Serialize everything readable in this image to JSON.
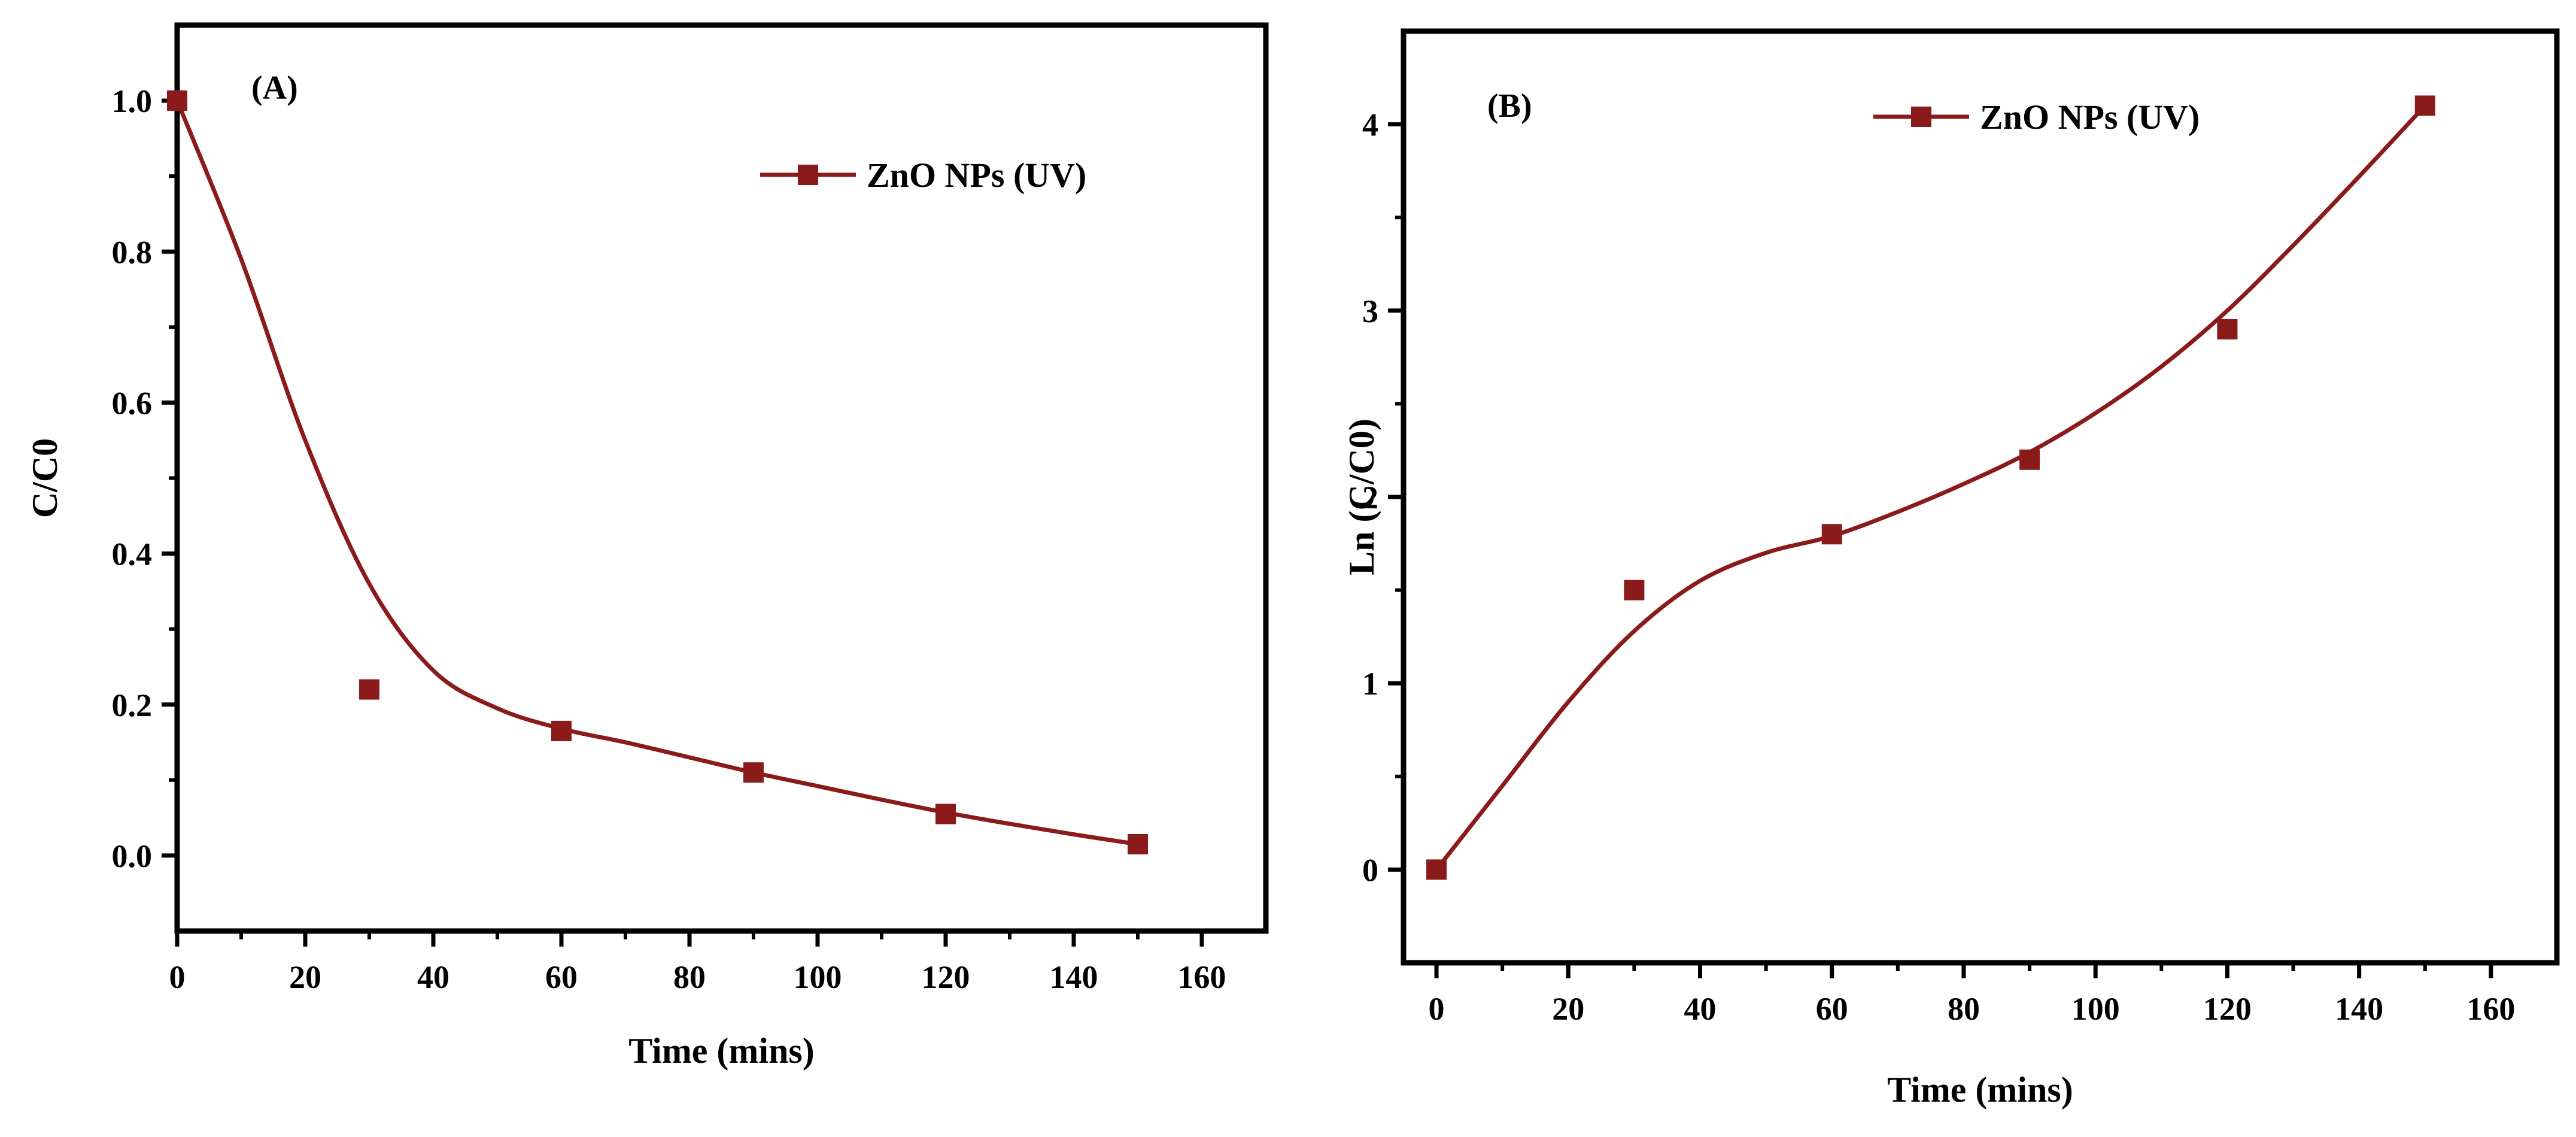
{
  "colors": {
    "series": "#8b1a1a",
    "axis": "#000000",
    "background": "#ffffff"
  },
  "chart_data": [
    {
      "type": "line",
      "panel_label": "(A)",
      "xlabel": "Time (mins)",
      "ylabel": "C/C0",
      "xlim": [
        0,
        170
      ],
      "ylim": [
        -0.1,
        1.1
      ],
      "xticks": [
        0,
        20,
        40,
        60,
        80,
        100,
        120,
        140,
        160
      ],
      "yticks": [
        0.0,
        0.2,
        0.4,
        0.6,
        0.8,
        1.0
      ],
      "ytick_labels": [
        "0.0",
        "0.2",
        "0.4",
        "0.6",
        "0.8",
        "1.0"
      ],
      "legend_position": "top-right",
      "series": [
        {
          "name": "ZnO NPs (UV)",
          "x": [
            0,
            30,
            60,
            90,
            120,
            150
          ],
          "y": [
            1.0,
            0.22,
            0.165,
            0.11,
            0.055,
            0.015
          ],
          "fit_x": [
            0,
            10,
            20,
            30,
            40,
            50,
            60,
            70,
            80,
            90,
            100,
            110,
            120,
            130,
            140,
            150
          ],
          "fit_y": [
            1.0,
            0.79,
            0.55,
            0.36,
            0.245,
            0.195,
            0.168,
            0.15,
            0.13,
            0.11,
            0.092,
            0.074,
            0.057,
            0.042,
            0.028,
            0.015
          ]
        }
      ]
    },
    {
      "type": "line",
      "panel_label": "(B)",
      "xlabel": "Time (mins)",
      "ylabel": "Ln (C/C0)",
      "xlim": [
        -5,
        170
      ],
      "ylim": [
        -0.5,
        4.5
      ],
      "xticks": [
        0,
        20,
        40,
        60,
        80,
        100,
        120,
        140,
        160
      ],
      "yticks": [
        0,
        1,
        2,
        3,
        4
      ],
      "ytick_labels": [
        "0",
        "1",
        "2",
        "3",
        "4"
      ],
      "legend_position": "top-right",
      "series": [
        {
          "name": "ZnO NPs (UV)",
          "x": [
            0,
            30,
            60,
            90,
            120,
            150
          ],
          "y": [
            0.0,
            1.5,
            1.8,
            2.2,
            2.9,
            4.1
          ],
          "fit_x": [
            0,
            10,
            20,
            30,
            40,
            50,
            60,
            70,
            80,
            90,
            100,
            110,
            120,
            130,
            140,
            150
          ],
          "fit_y": [
            0.0,
            0.45,
            0.9,
            1.28,
            1.55,
            1.7,
            1.79,
            1.92,
            2.07,
            2.24,
            2.45,
            2.7,
            3.0,
            3.35,
            3.72,
            4.1
          ]
        }
      ]
    }
  ]
}
